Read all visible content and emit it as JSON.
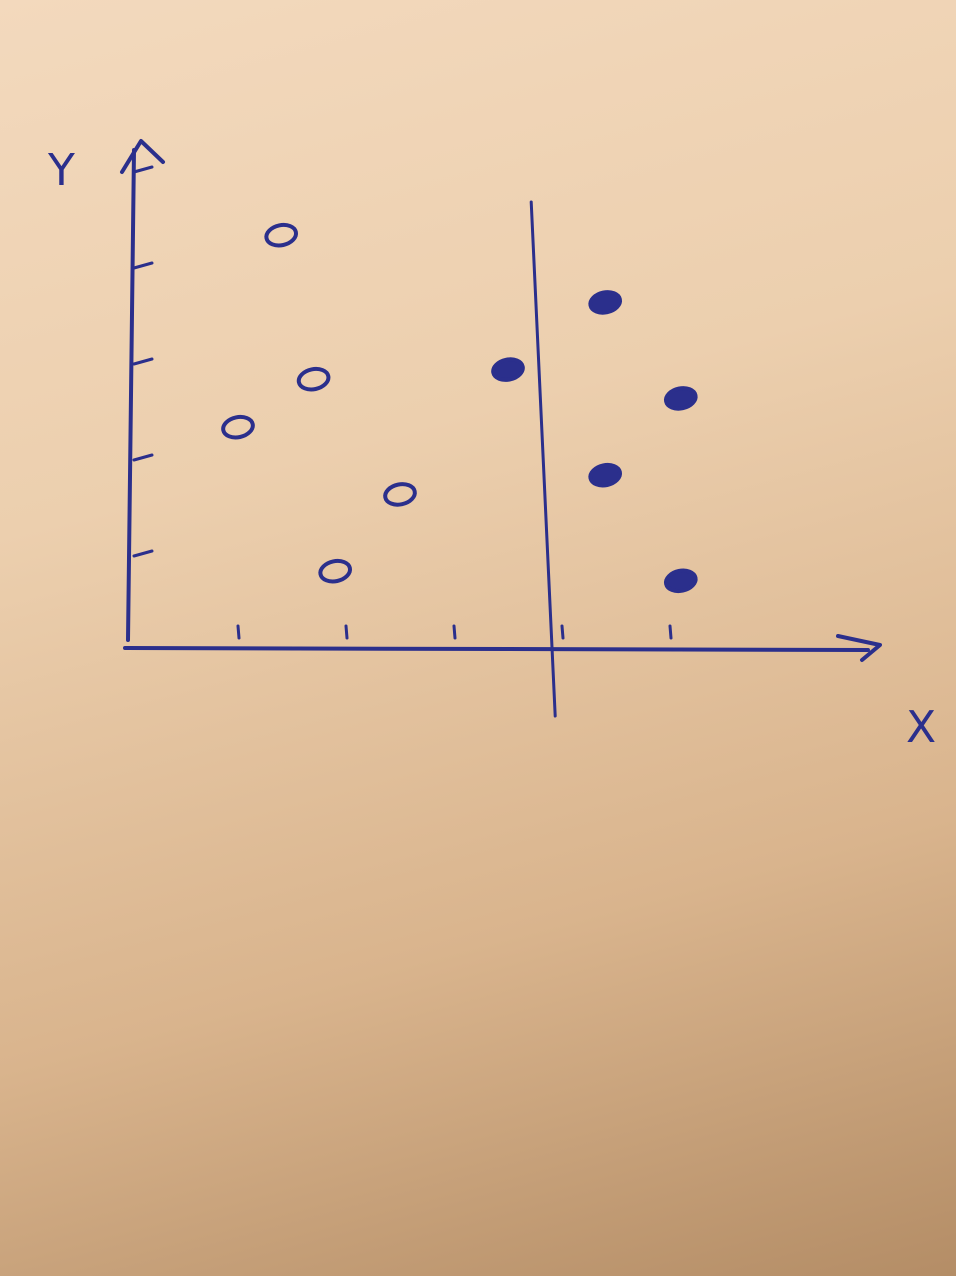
{
  "chart_data": {
    "type": "scatter",
    "xlabel": "X",
    "ylabel": "Y",
    "x_ticks": [
      1,
      2,
      3,
      4,
      5
    ],
    "y_ticks": [
      1,
      2,
      3,
      4,
      5
    ],
    "xlim": [
      0,
      6.6
    ],
    "ylim": [
      0,
      5.4
    ],
    "grid": false,
    "series": [
      {
        "marker": "open-circle",
        "color": "#2b2f8c",
        "points": [
          {
            "x": 1.4,
            "y": 4.3
          },
          {
            "x": 1.7,
            "y": 2.8
          },
          {
            "x": 1.0,
            "y": 2.3
          },
          {
            "x": 2.5,
            "y": 1.6
          },
          {
            "x": 1.9,
            "y": 0.8
          }
        ]
      },
      {
        "marker": "filled-circle",
        "color": "#2b2f8c",
        "points": [
          {
            "x": 3.5,
            "y": 2.9
          },
          {
            "x": 4.4,
            "y": 3.6
          },
          {
            "x": 5.1,
            "y": 2.6
          },
          {
            "x": 4.4,
            "y": 1.8
          },
          {
            "x": 5.1,
            "y": 0.7
          }
        ]
      }
    ],
    "separator_line": {
      "x": 3.9
    },
    "colors": {
      "ink": "#2b2f8c"
    }
  }
}
